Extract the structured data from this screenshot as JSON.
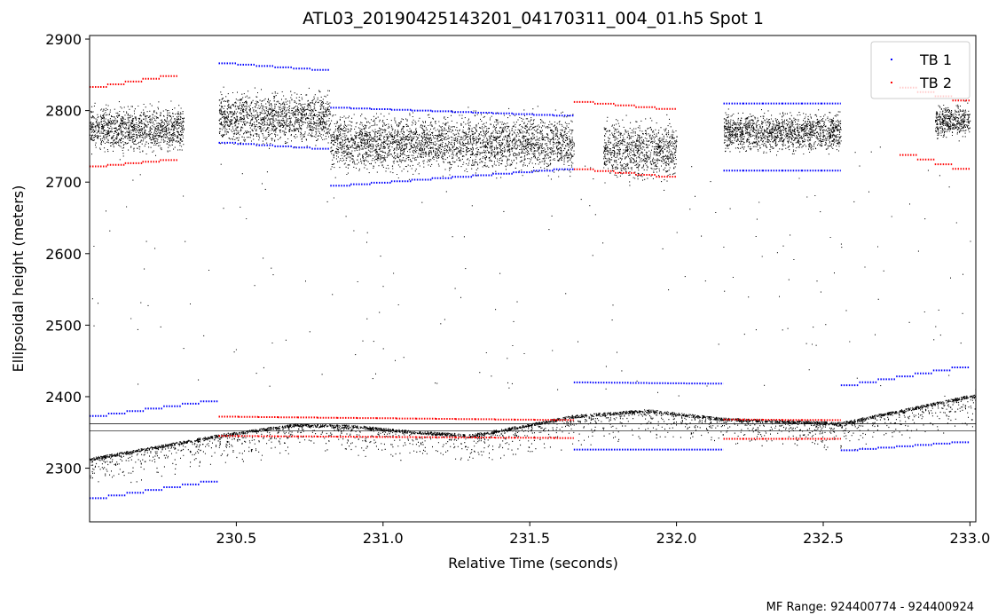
{
  "chart_data": {
    "type": "scatter",
    "title": "ATL03_20190425143201_04170311_004_01.h5 Spot 1",
    "xlabel": "Relative Time (seconds)",
    "ylabel": "Ellipsoidal height (meters)",
    "xlim": [
      230.0,
      233.02
    ],
    "ylim": [
      2225,
      2905
    ],
    "x_ticks": [
      230.5,
      231.0,
      231.5,
      232.0,
      232.5,
      233.0
    ],
    "x_tick_labels": [
      "230.5",
      "231.0",
      "231.5",
      "232.0",
      "232.5",
      "233.0"
    ],
    "y_ticks": [
      2300,
      2400,
      2500,
      2600,
      2700,
      2800,
      2900
    ],
    "y_tick_labels": [
      "2300",
      "2400",
      "2500",
      "2600",
      "2700",
      "2800",
      "2900"
    ],
    "grid": false,
    "legend": {
      "placement": "top-right"
    },
    "series": [
      {
        "name": "TB 1",
        "color": "#0000ff",
        "segments": [
          {
            "x": [
              230.0,
              230.44
            ],
            "y": [
              2373,
              2397
            ]
          },
          {
            "x": [
              230.0,
              230.44
            ],
            "y": [
              2258,
              2285
            ]
          },
          {
            "x": [
              230.44,
              230.82
            ],
            "y": [
              2866,
              2855
            ]
          },
          {
            "x": [
              230.44,
              230.82
            ],
            "y": [
              2755,
              2745
            ]
          },
          {
            "x": [
              230.82,
              231.65
            ],
            "y": [
              2804,
              2792
            ]
          },
          {
            "x": [
              230.82,
              231.65
            ],
            "y": [
              2695,
              2720
            ]
          },
          {
            "x": [
              231.65,
              232.16
            ],
            "y": [
              2420,
              2418
            ]
          },
          {
            "x": [
              231.65,
              232.16
            ],
            "y": [
              2326,
              2326
            ]
          },
          {
            "x": [
              232.16,
              232.56
            ],
            "y": [
              2810,
              2810
            ]
          },
          {
            "x": [
              232.16,
              232.56
            ],
            "y": [
              2716,
              2716
            ]
          },
          {
            "x": [
              232.56,
              233.0
            ],
            "y": [
              2416,
              2445
            ]
          },
          {
            "x": [
              232.56,
              233.0
            ],
            "y": [
              2325,
              2338
            ]
          }
        ]
      },
      {
        "name": "TB 2",
        "color": "#ff0000",
        "segments": [
          {
            "x": [
              230.0,
              230.3
            ],
            "y": [
              2833,
              2852
            ]
          },
          {
            "x": [
              230.0,
              230.3
            ],
            "y": [
              2722,
              2733
            ]
          },
          {
            "x": [
              230.44,
              231.65
            ],
            "y": [
              2372,
              2367
            ]
          },
          {
            "x": [
              230.44,
              231.65
            ],
            "y": [
              2345,
              2342
            ]
          },
          {
            "x": [
              231.65,
              232.0
            ],
            "y": [
              2812,
              2800
            ]
          },
          {
            "x": [
              231.65,
              232.0
            ],
            "y": [
              2718,
              2705
            ]
          },
          {
            "x": [
              232.16,
              232.56
            ],
            "y": [
              2368,
              2367
            ]
          },
          {
            "x": [
              232.16,
              232.56
            ],
            "y": [
              2341,
              2341
            ]
          },
          {
            "x": [
              232.76,
              233.0
            ],
            "y": [
              2832,
              2808
            ]
          },
          {
            "x": [
              232.76,
              233.0
            ],
            "y": [
              2738,
              2712
            ]
          }
        ]
      },
      {
        "name": "",
        "color": "#000000",
        "description": "photon returns",
        "ground_surface": {
          "x": [
            230.0,
            230.44,
            230.7,
            230.9,
            231.1,
            231.3,
            231.5,
            231.65,
            231.9,
            232.16,
            232.56,
            233.0
          ],
          "y": [
            2312,
            2345,
            2360,
            2358,
            2350,
            2345,
            2360,
            2372,
            2380,
            2368,
            2362,
            2400
          ]
        },
        "canopy_bands": [
          {
            "x": [
              230.0,
              230.32
            ],
            "y": [
              2740,
              2810
            ]
          },
          {
            "x": [
              230.44,
              230.82
            ],
            "y": [
              2750,
              2830
            ]
          },
          {
            "x": [
              230.82,
              231.65
            ],
            "y": [
              2710,
              2800
            ]
          },
          {
            "x": [
              231.75,
              232.0
            ],
            "y": [
              2700,
              2790
            ]
          },
          {
            "x": [
              232.16,
              232.56
            ],
            "y": [
              2740,
              2800
            ]
          },
          {
            "x": [
              232.88,
              233.0
            ],
            "y": [
              2760,
              2810
            ]
          }
        ]
      }
    ]
  },
  "footer": {
    "mf_range": "MF Range: 924400774 - 924400924"
  }
}
